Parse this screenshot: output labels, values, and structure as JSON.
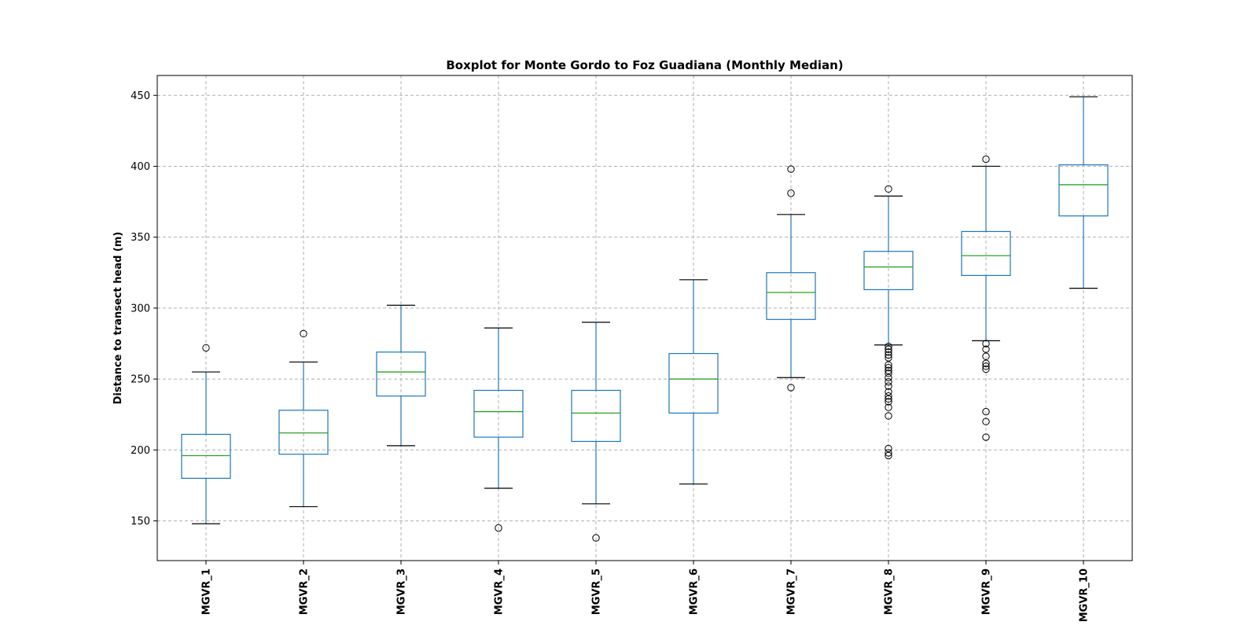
{
  "chart_data": {
    "type": "boxplot",
    "title": "Boxplot for Monte Gordo to Foz Guadiana (Monthly Median)",
    "xlabel": "",
    "ylabel": "Distance to transect head (m)",
    "ylim": [
      122,
      464
    ],
    "yticks": [
      150,
      200,
      250,
      300,
      350,
      400,
      450
    ],
    "grid": true,
    "colors": {
      "box": "#1f77b4",
      "median": "#2ca02c",
      "whisker_cap": "#000000",
      "grid": "#b0b0b0"
    },
    "categories": [
      "MGVR_1",
      "MGVR_2",
      "MGVR_3",
      "MGVR_4",
      "MGVR_5",
      "MGVR_6",
      "MGVR_7",
      "MGVR_8",
      "MGVR_9",
      "MGVR_10"
    ],
    "boxes": [
      {
        "whislo": 148,
        "q1": 180,
        "med": 196,
        "q3": 211,
        "whishi": 255,
        "fliers": [
          272
        ]
      },
      {
        "whislo": 160,
        "q1": 197,
        "med": 212,
        "q3": 228,
        "whishi": 262,
        "fliers": [
          282
        ]
      },
      {
        "whislo": 203,
        "q1": 238,
        "med": 255,
        "q3": 269,
        "whishi": 302,
        "fliers": []
      },
      {
        "whislo": 173,
        "q1": 209,
        "med": 227,
        "q3": 242,
        "whishi": 286,
        "fliers": [
          145
        ]
      },
      {
        "whislo": 162,
        "q1": 206,
        "med": 226,
        "q3": 242,
        "whishi": 290,
        "fliers": [
          138
        ]
      },
      {
        "whislo": 176,
        "q1": 226,
        "med": 250,
        "q3": 268,
        "whishi": 320,
        "fliers": []
      },
      {
        "whislo": 251,
        "q1": 292,
        "med": 311,
        "q3": 325,
        "whishi": 366,
        "fliers": [
          244,
          381,
          398
        ]
      },
      {
        "whislo": 274,
        "q1": 313,
        "med": 329,
        "q3": 340,
        "whishi": 379,
        "fliers": [
          384,
          273,
          271,
          269,
          267,
          265,
          260,
          258,
          256,
          254,
          251,
          248,
          245,
          241,
          238,
          236,
          234,
          230,
          224,
          201,
          198,
          196
        ]
      },
      {
        "whislo": 277,
        "q1": 323,
        "med": 337,
        "q3": 354,
        "whishi": 400,
        "fliers": [
          405,
          275,
          271,
          266,
          261,
          259,
          257,
          227,
          220,
          209
        ]
      },
      {
        "whislo": 314,
        "q1": 365,
        "med": 387,
        "q3": 401,
        "whishi": 449,
        "fliers": []
      }
    ]
  }
}
